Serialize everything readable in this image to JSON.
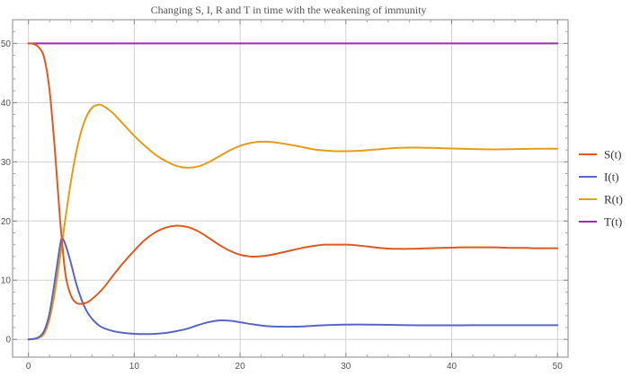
{
  "chart_data": {
    "type": "line",
    "title": "Changing S, I, R and T in time with the weakening of immunity",
    "xlabel": "",
    "ylabel": "",
    "xlim": [
      -1.5,
      51
    ],
    "ylim": [
      -3,
      54
    ],
    "xticks": [
      0,
      10,
      20,
      30,
      40,
      50
    ],
    "yticks": [
      0,
      10,
      20,
      30,
      40,
      50
    ],
    "grid": true,
    "legend_position": "right",
    "series": [
      {
        "name": "S(t)",
        "color": "#dd5b20",
        "points": [
          [
            0,
            50
          ],
          [
            0.5,
            49.9
          ],
          [
            1,
            49.3
          ],
          [
            1.5,
            47.5
          ],
          [
            2,
            42
          ],
          [
            2.5,
            32
          ],
          [
            3,
            20
          ],
          [
            3.5,
            11
          ],
          [
            4,
            7.5
          ],
          [
            4.5,
            6.2
          ],
          [
            5,
            6
          ],
          [
            5.5,
            6.2
          ],
          [
            6,
            6.8
          ],
          [
            7,
            8.5
          ],
          [
            8,
            10.8
          ],
          [
            9,
            13
          ],
          [
            10,
            15
          ],
          [
            11,
            16.8
          ],
          [
            12,
            18.1
          ],
          [
            13,
            18.9
          ],
          [
            14,
            19.2
          ],
          [
            15,
            19
          ],
          [
            16,
            18.3
          ],
          [
            17,
            17.2
          ],
          [
            18,
            16
          ],
          [
            19,
            15
          ],
          [
            20,
            14.3
          ],
          [
            21,
            14
          ],
          [
            22,
            14.05
          ],
          [
            23,
            14.3
          ],
          [
            24,
            14.7
          ],
          [
            25,
            15.1
          ],
          [
            26,
            15.5
          ],
          [
            27,
            15.8
          ],
          [
            28,
            16
          ],
          [
            29,
            16
          ],
          [
            30,
            16
          ],
          [
            31,
            15.9
          ],
          [
            32,
            15.7
          ],
          [
            33,
            15.5
          ],
          [
            34,
            15.35
          ],
          [
            35,
            15.3
          ],
          [
            36,
            15.3
          ],
          [
            37,
            15.35
          ],
          [
            38,
            15.4
          ],
          [
            39,
            15.45
          ],
          [
            40,
            15.5
          ],
          [
            41,
            15.55
          ],
          [
            42,
            15.55
          ],
          [
            43,
            15.55
          ],
          [
            44,
            15.55
          ],
          [
            45,
            15.5
          ],
          [
            46,
            15.45
          ],
          [
            47,
            15.45
          ],
          [
            48,
            15.4
          ],
          [
            49,
            15.4
          ],
          [
            50,
            15.4
          ]
        ]
      },
      {
        "name": "I(t)",
        "color": "#5b65c4",
        "points": [
          [
            0,
            0
          ],
          [
            0.5,
            0.1
          ],
          [
            1,
            0.4
          ],
          [
            1.5,
            1.5
          ],
          [
            2,
            4.5
          ],
          [
            2.5,
            10
          ],
          [
            3,
            16
          ],
          [
            3.2,
            17
          ],
          [
            3.5,
            16
          ],
          [
            4,
            13
          ],
          [
            4.5,
            9.5
          ],
          [
            5,
            6.8
          ],
          [
            5.5,
            4.8
          ],
          [
            6,
            3.5
          ],
          [
            6.5,
            2.6
          ],
          [
            7,
            2
          ],
          [
            8,
            1.4
          ],
          [
            9,
            1.1
          ],
          [
            10,
            0.95
          ],
          [
            11,
            0.9
          ],
          [
            12,
            0.95
          ],
          [
            13,
            1.1
          ],
          [
            14,
            1.4
          ],
          [
            15,
            1.8
          ],
          [
            16,
            2.4
          ],
          [
            17,
            2.9
          ],
          [
            18,
            3.2
          ],
          [
            19,
            3.15
          ],
          [
            20,
            2.9
          ],
          [
            21,
            2.6
          ],
          [
            22,
            2.35
          ],
          [
            23,
            2.2
          ],
          [
            24,
            2.15
          ],
          [
            25,
            2.15
          ],
          [
            26,
            2.2
          ],
          [
            27,
            2.3
          ],
          [
            28,
            2.4
          ],
          [
            29,
            2.45
          ],
          [
            30,
            2.5
          ],
          [
            32,
            2.5
          ],
          [
            34,
            2.45
          ],
          [
            36,
            2.4
          ],
          [
            38,
            2.38
          ],
          [
            40,
            2.38
          ],
          [
            42,
            2.4
          ],
          [
            44,
            2.4
          ],
          [
            46,
            2.4
          ],
          [
            48,
            2.4
          ],
          [
            50,
            2.4
          ]
        ]
      },
      {
        "name": "R(t)",
        "color": "#e69c17",
        "points": [
          [
            0,
            0
          ],
          [
            0.5,
            0.05
          ],
          [
            1,
            0.3
          ],
          [
            1.5,
            1
          ],
          [
            2,
            3.5
          ],
          [
            2.5,
            8
          ],
          [
            3,
            14
          ],
          [
            3.5,
            20.5
          ],
          [
            4,
            26.5
          ],
          [
            4.5,
            31.5
          ],
          [
            5,
            35.2
          ],
          [
            5.5,
            37.7
          ],
          [
            6,
            39.1
          ],
          [
            6.5,
            39.6
          ],
          [
            7,
            39.5
          ],
          [
            8,
            38.2
          ],
          [
            9,
            36.3
          ],
          [
            10,
            34.4
          ],
          [
            11,
            32.7
          ],
          [
            12,
            31.2
          ],
          [
            13,
            30.1
          ],
          [
            14,
            29.3
          ],
          [
            15,
            29
          ],
          [
            16,
            29.2
          ],
          [
            17,
            29.9
          ],
          [
            18,
            30.9
          ],
          [
            19,
            31.9
          ],
          [
            20,
            32.7
          ],
          [
            21,
            33.2
          ],
          [
            22,
            33.4
          ],
          [
            23,
            33.35
          ],
          [
            24,
            33.1
          ],
          [
            25,
            32.8
          ],
          [
            26,
            32.45
          ],
          [
            27,
            32.1
          ],
          [
            28,
            31.9
          ],
          [
            29,
            31.8
          ],
          [
            30,
            31.8
          ],
          [
            31,
            31.85
          ],
          [
            32,
            31.95
          ],
          [
            33,
            32.1
          ],
          [
            34,
            32.25
          ],
          [
            35,
            32.35
          ],
          [
            36,
            32.4
          ],
          [
            37,
            32.4
          ],
          [
            38,
            32.35
          ],
          [
            39,
            32.3
          ],
          [
            40,
            32.25
          ],
          [
            42,
            32.15
          ],
          [
            44,
            32.1
          ],
          [
            46,
            32.15
          ],
          [
            48,
            32.2
          ],
          [
            50,
            32.2
          ]
        ]
      },
      {
        "name": "T(t)",
        "color": "#9e2fac",
        "points": [
          [
            0,
            50
          ],
          [
            50,
            50
          ]
        ]
      }
    ]
  }
}
